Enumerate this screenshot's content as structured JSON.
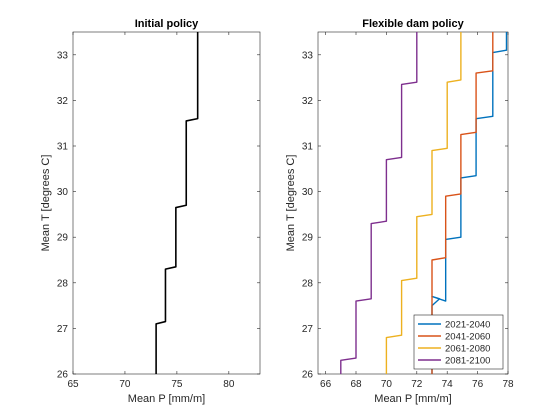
{
  "chart_data": [
    {
      "type": "line",
      "title": "Initial policy",
      "xlabel": "Mean P [mm/m]",
      "ylabel": "Mean T [degrees C]",
      "xlim": [
        65,
        83
      ],
      "ylim": [
        26,
        33.5
      ],
      "xticks": [
        65,
        70,
        75,
        80
      ],
      "yticks": [
        26,
        27,
        28,
        29,
        30,
        31,
        32,
        33
      ],
      "grid": false,
      "series": [
        {
          "color": "#000000",
          "points": [
            [
              73,
              26
            ],
            [
              73,
              27.1
            ],
            [
              73.9,
              27.15
            ],
            [
              73.9,
              28.3
            ],
            [
              74.9,
              28.35
            ],
            [
              74.9,
              29.65
            ],
            [
              75.9,
              29.7
            ],
            [
              75.9,
              31.55
            ],
            [
              77,
              31.6
            ],
            [
              77,
              33.5
            ]
          ]
        }
      ]
    },
    {
      "type": "line",
      "title": "Flexible dam policy",
      "xlabel": "Mean P [mm/m]",
      "ylabel": "Mean T [degrees C]",
      "xlim": [
        65.5,
        78
      ],
      "ylim": [
        26,
        33.5
      ],
      "xticks": [
        66,
        68,
        70,
        72,
        74,
        76,
        78
      ],
      "yticks": [
        26,
        27,
        28,
        29,
        30,
        31,
        32,
        33
      ],
      "grid": false,
      "legend_position": "bottom-right",
      "series": [
        {
          "name": "2021-2040",
          "color": "#0072BD",
          "points": [
            [
              73,
              26
            ],
            [
              73,
              27.5
            ],
            [
              73.5,
              27.65
            ],
            [
              73,
              27.7
            ],
            [
              73.9,
              27.6
            ],
            [
              73.9,
              28.95
            ],
            [
              74.9,
              29
            ],
            [
              74.9,
              30.3
            ],
            [
              75.9,
              30.35
            ],
            [
              75.9,
              31.6
            ],
            [
              77,
              31.65
            ],
            [
              77,
              33.05
            ],
            [
              77.9,
              33.1
            ],
            [
              77.9,
              33.5
            ]
          ]
        },
        {
          "name": "2041-2060",
          "color": "#D95319",
          "points": [
            [
              73,
              26
            ],
            [
              73,
              28.5
            ],
            [
              73.9,
              28.55
            ],
            [
              73.9,
              29.9
            ],
            [
              74.9,
              29.95
            ],
            [
              74.9,
              31.25
            ],
            [
              75.9,
              31.3
            ],
            [
              75.9,
              32.6
            ],
            [
              77,
              32.65
            ],
            [
              77,
              33.5
            ]
          ]
        },
        {
          "name": "2061-2080",
          "color": "#EDB120",
          "points": [
            [
              70,
              26
            ],
            [
              70,
              26.8
            ],
            [
              71,
              26.85
            ],
            [
              71,
              28.05
            ],
            [
              72,
              28.1
            ],
            [
              72,
              29.45
            ],
            [
              73,
              29.5
            ],
            [
              73,
              30.9
            ],
            [
              74,
              30.95
            ],
            [
              74,
              32.4
            ],
            [
              74.9,
              32.45
            ],
            [
              74.9,
              33.5
            ]
          ]
        },
        {
          "name": "2081-2100",
          "color": "#7E2F8E",
          "points": [
            [
              67,
              26
            ],
            [
              67,
              26.3
            ],
            [
              68,
              26.35
            ],
            [
              68,
              27.6
            ],
            [
              69,
              27.65
            ],
            [
              69,
              29.3
            ],
            [
              70,
              29.35
            ],
            [
              70,
              30.7
            ],
            [
              71,
              30.75
            ],
            [
              71,
              32.35
            ],
            [
              72,
              32.4
            ],
            [
              72,
              33.5
            ]
          ]
        }
      ]
    }
  ]
}
